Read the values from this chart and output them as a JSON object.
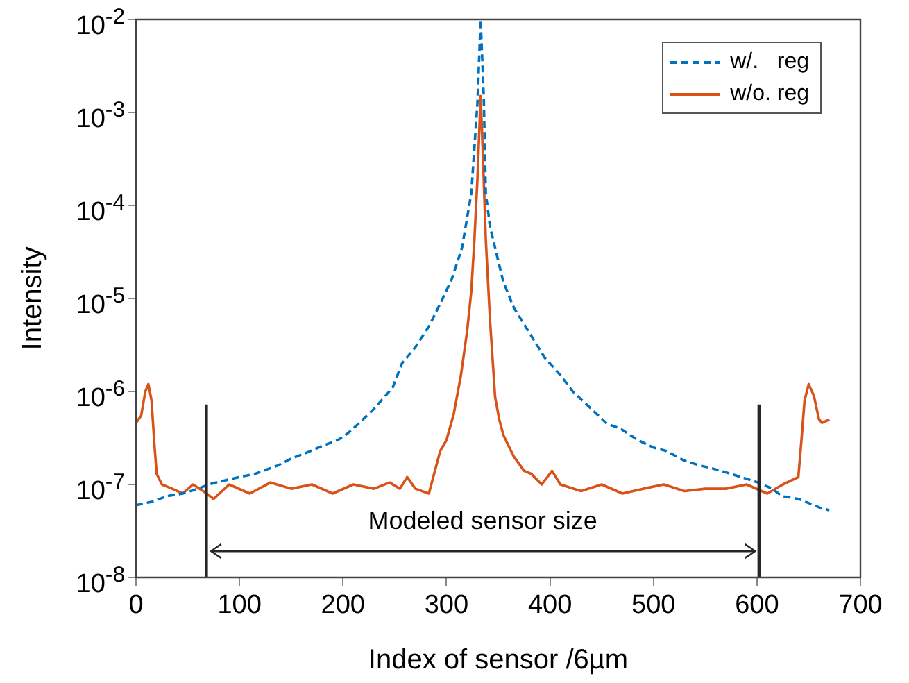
{
  "chart_data": {
    "type": "line",
    "xlabel": "Index of sensor /6µm",
    "ylabel": "Intensity",
    "log": "y",
    "xlim": [
      0,
      700
    ],
    "xticks": [
      0,
      100,
      200,
      300,
      400,
      500,
      600,
      700
    ],
    "ylim": [
      1e-08,
      0.01
    ],
    "yticks": [
      {
        "value": 1e-08,
        "label": "10$^{-8}$"
      },
      {
        "value": 1e-07,
        "label": "10$^{-7}$"
      },
      {
        "value": 1e-06,
        "label": "10$^{-6}$"
      },
      {
        "value": 1e-05,
        "label": "10$^{-5}$"
      },
      {
        "value": 0.0001,
        "label": "10$^{-4}$"
      },
      {
        "value": 0.001,
        "label": "10$^{-3}$"
      },
      {
        "value": 0.01,
        "label": "10$^{-2}$"
      }
    ],
    "grid": false,
    "legend": "top right",
    "annotations": [
      "Modeled sensor size"
    ],
    "ref_lines": [
      {
        "axis": "x",
        "value": 68,
        "label": null,
        "color": "#262626"
      },
      {
        "axis": "x",
        "value": 602,
        "label": null,
        "color": "#262626"
      }
    ],
    "series": [
      {
        "name": "w/.   reg",
        "color": "#0072bd",
        "line_style": "dashed",
        "x": [
          0,
          15,
          30,
          45,
          60,
          70,
          85,
          100,
          115,
          130,
          137,
          150,
          165,
          180,
          195,
          204,
          215,
          230,
          248,
          257,
          270,
          283,
          294,
          305,
          315,
          324,
          330,
          333,
          336,
          338,
          342,
          347,
          355,
          365,
          374,
          385,
          395,
          410,
          422,
          440,
          455,
          468,
          485,
          500,
          512,
          530,
          545,
          556,
          575,
          590,
          601,
          615,
          624,
          640,
          655,
          663,
          670
        ],
        "values": [
          6e-08,
          6.5e-08,
          7.5e-08,
          8e-08,
          9e-08,
          1e-07,
          1.1e-07,
          1.2e-07,
          1.3e-07,
          1.5e-07,
          1.6e-07,
          1.9e-07,
          2.2e-07,
          2.6e-07,
          3e-07,
          3.5e-07,
          4.5e-07,
          6.5e-07,
          1.1e-06,
          2e-06,
          3e-06,
          5e-06,
          8.8e-06,
          1.6e-05,
          3.5e-05,
          0.000135,
          0.0013,
          0.01,
          0.0015,
          0.000135,
          6e-05,
          3.5e-05,
          1.5e-05,
          8e-06,
          5.5e-06,
          3.5e-06,
          2.3e-06,
          1.5e-06,
          1e-06,
          6.5e-07,
          4.5e-07,
          4e-07,
          3e-07,
          2.5e-07,
          2.3e-07,
          1.8e-07,
          1.6e-07,
          1.5e-07,
          1.3e-07,
          1.15e-07,
          1.05e-07,
          9e-08,
          7.5e-08,
          7e-08,
          6e-08,
          5.5e-08,
          5.3e-08
        ]
      },
      {
        "name": "w/o. reg",
        "color": "#d95319",
        "line_style": "solid",
        "x": [
          0,
          5,
          9,
          12,
          15,
          18,
          20,
          25,
          35,
          45,
          55,
          65,
          75,
          90,
          110,
          130,
          150,
          170,
          190,
          210,
          230,
          245,
          255,
          262,
          270,
          283,
          294,
          300,
          307,
          314,
          320,
          324,
          327,
          330,
          333,
          335,
          338,
          342,
          347,
          351,
          355,
          365,
          375,
          382,
          392,
          402,
          410,
          430,
          450,
          470,
          490,
          510,
          530,
          550,
          570,
          590,
          610,
          625,
          640,
          643,
          646,
          650,
          655,
          660,
          663,
          670
        ],
        "values": [
          4.6e-07,
          5.5e-07,
          1e-06,
          1.2e-06,
          8e-07,
          2.5e-07,
          1.3e-07,
          1e-07,
          9e-08,
          8e-08,
          1e-07,
          8.5e-08,
          7e-08,
          1e-07,
          8e-08,
          1.05e-07,
          9e-08,
          1e-07,
          8e-08,
          1e-07,
          9e-08,
          1.05e-07,
          9e-08,
          1.2e-07,
          9e-08,
          8e-08,
          2.3e-07,
          3e-07,
          5.7e-07,
          1.5e-06,
          4.5e-06,
          1.2e-05,
          4.3e-05,
          0.0002,
          0.0015,
          0.0004,
          4.3e-05,
          6e-06,
          8.7e-07,
          5e-07,
          3.4e-07,
          2e-07,
          1.4e-07,
          1.3e-07,
          1e-07,
          1.4e-07,
          1e-07,
          8.5e-08,
          1e-07,
          8e-08,
          9e-08,
          1e-07,
          8.5e-08,
          9e-08,
          9e-08,
          1e-07,
          8e-08,
          1e-07,
          1.2e-07,
          3e-07,
          8e-07,
          1.2e-06,
          9e-07,
          5e-07,
          4.6e-07,
          5e-07
        ]
      }
    ]
  }
}
